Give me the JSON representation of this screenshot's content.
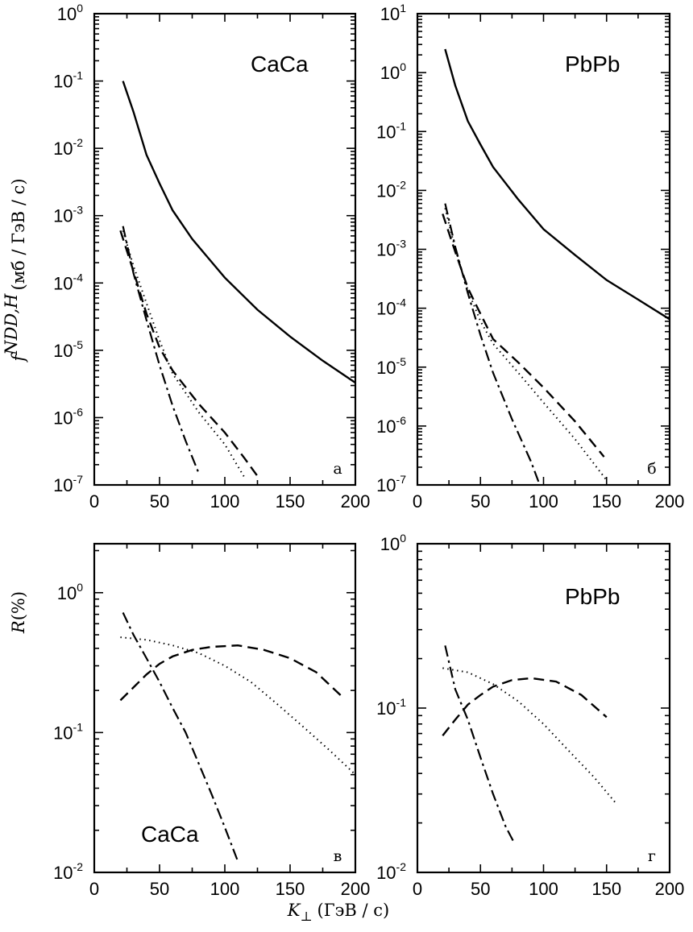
{
  "figure": {
    "y_title_top": {
      "symbol": "f",
      "superscript": "NDD,H",
      "unit": "(мб / ГэВ / с)"
    },
    "y_title_bottom": {
      "symbol": "R",
      "unit": "(%)"
    },
    "x_title": {
      "symbol": "K",
      "subscript": "⊥",
      "unit": "(ГэВ / с)"
    }
  },
  "chart_data": [
    {
      "id": "a",
      "type": "line",
      "panel_letter": "а",
      "label": "CaCa",
      "label_position": "top-right",
      "x_ticks": [
        0,
        50,
        100,
        150,
        200
      ],
      "xlim": [
        0,
        200
      ],
      "y_scale": "log",
      "ylim_exp": [
        -7,
        0
      ],
      "y_ticks_exp": [
        -7,
        -6,
        -5,
        -4,
        -3,
        -2,
        -1,
        0
      ],
      "series": [
        {
          "style": "solid",
          "points": [
            [
              22,
              0.1
            ],
            [
              30,
              0.035
            ],
            [
              40,
              0.008
            ],
            [
              50,
              0.003
            ],
            [
              60,
              0.0012
            ],
            [
              75,
              0.00045
            ],
            [
              100,
              0.00012
            ],
            [
              125,
              4e-05
            ],
            [
              150,
              1.6e-05
            ],
            [
              175,
              7e-06
            ],
            [
              200,
              3.3e-06
            ]
          ]
        },
        {
          "style": "dashed",
          "points": [
            [
              20,
              0.0006
            ],
            [
              30,
              0.00015
            ],
            [
              40,
              3.5e-05
            ],
            [
              50,
              1.1e-05
            ],
            [
              60,
              5e-06
            ],
            [
              80,
              1.6e-06
            ],
            [
              100,
              6e-07
            ],
            [
              115,
              2.5e-07
            ],
            [
              127,
              1.2e-07
            ]
          ]
        },
        {
          "style": "dotted",
          "points": [
            [
              22,
              0.0006
            ],
            [
              30,
              0.00018
            ],
            [
              40,
              5e-05
            ],
            [
              50,
              1.4e-05
            ],
            [
              60,
              4.5e-06
            ],
            [
              80,
              1.2e-06
            ],
            [
              100,
              4e-07
            ],
            [
              115,
              1.3e-07
            ]
          ]
        },
        {
          "style": "dashdot",
          "points": [
            [
              22,
              0.0007
            ],
            [
              30,
              0.00014
            ],
            [
              40,
              2.8e-05
            ],
            [
              50,
              6e-06
            ],
            [
              60,
              1.5e-06
            ],
            [
              70,
              4.5e-07
            ],
            [
              80,
              1.5e-07
            ]
          ]
        }
      ]
    },
    {
      "id": "b",
      "type": "line",
      "panel_letter": "б",
      "label": "PbPb",
      "label_position": "top-right",
      "x_ticks": [
        0,
        50,
        100,
        150,
        200
      ],
      "xlim": [
        0,
        200
      ],
      "y_scale": "log",
      "ylim_exp": [
        -7,
        1
      ],
      "y_ticks_exp": [
        -7,
        -6,
        -5,
        -4,
        -3,
        -2,
        -1,
        0,
        1
      ],
      "series": [
        {
          "style": "solid",
          "points": [
            [
              22,
              2.5
            ],
            [
              30,
              0.6
            ],
            [
              40,
              0.15
            ],
            [
              50,
              0.06
            ],
            [
              60,
              0.025
            ],
            [
              80,
              0.007
            ],
            [
              100,
              0.0022
            ],
            [
              125,
              0.0008
            ],
            [
              150,
              0.0003
            ],
            [
              175,
              0.00014
            ],
            [
              200,
              6.5e-05
            ]
          ]
        },
        {
          "style": "dashed",
          "points": [
            [
              20,
              0.004
            ],
            [
              30,
              0.0009
            ],
            [
              40,
              0.00022
            ],
            [
              50,
              8e-05
            ],
            [
              60,
              3e-05
            ],
            [
              80,
              1.2e-05
            ],
            [
              100,
              4.5e-06
            ],
            [
              125,
              1.2e-06
            ],
            [
              148,
              3e-07
            ]
          ]
        },
        {
          "style": "dotted",
          "points": [
            [
              22,
              0.005
            ],
            [
              30,
              0.001
            ],
            [
              40,
              0.0002
            ],
            [
              50,
              6e-05
            ],
            [
              60,
              2.5e-05
            ],
            [
              80,
              8e-06
            ],
            [
              100,
              2.5e-06
            ],
            [
              125,
              6e-07
            ],
            [
              150,
              1.2e-07
            ]
          ]
        },
        {
          "style": "dashdot",
          "points": [
            [
              22,
              0.006
            ],
            [
              30,
              0.0011
            ],
            [
              40,
              0.00018
            ],
            [
              50,
              3.5e-05
            ],
            [
              60,
              8e-06
            ],
            [
              75,
              1.3e-06
            ],
            [
              90,
              2.5e-07
            ],
            [
              97,
              1e-07
            ]
          ]
        }
      ]
    },
    {
      "id": "c",
      "type": "line",
      "panel_letter": "в",
      "label": "CaCa",
      "label_position": "bottom-left",
      "x_ticks": [
        0,
        50,
        100,
        150,
        200
      ],
      "xlim": [
        0,
        200
      ],
      "y_scale": "log",
      "ylim_exp": [
        -2,
        0.35
      ],
      "y_ticks_exp": [
        -2,
        -1,
        0
      ],
      "series": [
        {
          "style": "dashed",
          "points": [
            [
              20,
              0.17
            ],
            [
              30,
              0.21
            ],
            [
              40,
              0.26
            ],
            [
              50,
              0.31
            ],
            [
              60,
              0.35
            ],
            [
              75,
              0.39
            ],
            [
              90,
              0.41
            ],
            [
              110,
              0.42
            ],
            [
              130,
              0.39
            ],
            [
              150,
              0.34
            ],
            [
              170,
              0.27
            ],
            [
              190,
              0.18
            ]
          ]
        },
        {
          "style": "dotted",
          "points": [
            [
              20,
              0.48
            ],
            [
              40,
              0.46
            ],
            [
              60,
              0.42
            ],
            [
              80,
              0.37
            ],
            [
              100,
              0.3
            ],
            [
              120,
              0.23
            ],
            [
              140,
              0.16
            ],
            [
              160,
              0.11
            ],
            [
              180,
              0.075
            ],
            [
              200,
              0.05
            ]
          ]
        },
        {
          "style": "dashdot",
          "points": [
            [
              22,
              0.72
            ],
            [
              30,
              0.5
            ],
            [
              40,
              0.34
            ],
            [
              50,
              0.23
            ],
            [
              60,
              0.15
            ],
            [
              70,
              0.1
            ],
            [
              80,
              0.06
            ],
            [
              90,
              0.036
            ],
            [
              100,
              0.021
            ],
            [
              110,
              0.012
            ]
          ]
        }
      ]
    },
    {
      "id": "d",
      "type": "line",
      "panel_letter": "г",
      "label": "PbPb",
      "label_position": "top-right",
      "x_ticks": [
        0,
        50,
        100,
        150,
        200
      ],
      "xlim": [
        0,
        200
      ],
      "y_scale": "log",
      "ylim_exp": [
        -2,
        0
      ],
      "y_ticks_exp": [
        -2,
        -1,
        0
      ],
      "series": [
        {
          "style": "dashed",
          "points": [
            [
              20,
              0.068
            ],
            [
              30,
              0.085
            ],
            [
              40,
              0.105
            ],
            [
              50,
              0.12
            ],
            [
              60,
              0.135
            ],
            [
              75,
              0.148
            ],
            [
              90,
              0.152
            ],
            [
              110,
              0.145
            ],
            [
              130,
              0.12
            ],
            [
              150,
              0.088
            ]
          ]
        },
        {
          "style": "dotted",
          "points": [
            [
              20,
              0.175
            ],
            [
              40,
              0.165
            ],
            [
              60,
              0.14
            ],
            [
              80,
              0.11
            ],
            [
              100,
              0.08
            ],
            [
              120,
              0.055
            ],
            [
              140,
              0.038
            ],
            [
              158,
              0.026
            ]
          ]
        },
        {
          "style": "dashdot",
          "points": [
            [
              22,
              0.24
            ],
            [
              30,
              0.13
            ],
            [
              40,
              0.085
            ],
            [
              50,
              0.05
            ],
            [
              60,
              0.03
            ],
            [
              70,
              0.019
            ],
            [
              77,
              0.015
            ]
          ]
        }
      ]
    }
  ]
}
